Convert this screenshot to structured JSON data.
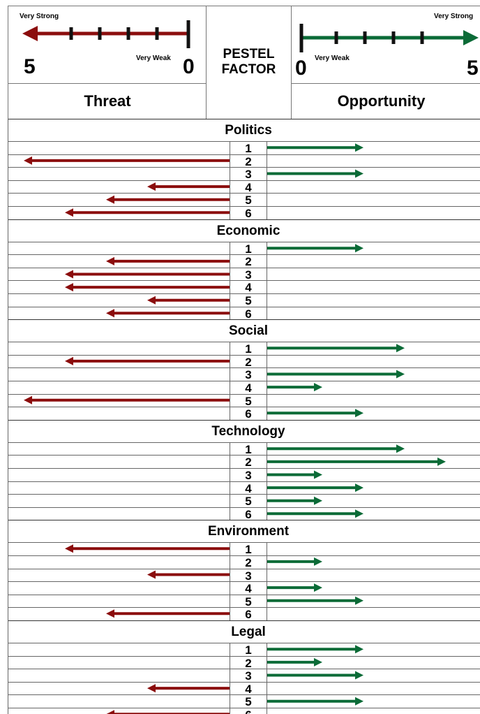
{
  "header": {
    "threat": {
      "strong_label": "Very Strong",
      "weak_label": "Very Weak",
      "max_value": "5",
      "min_value": "0",
      "title": "Threat"
    },
    "factor_title": [
      "PESTEL",
      "FACTOR"
    ],
    "opportunity": {
      "strong_label": "Very Strong",
      "weak_label": "Very Weak",
      "max_value": "5",
      "min_value": "0",
      "title": "Opportunity"
    }
  },
  "colors": {
    "threat": "#8b0d0d",
    "opportunity": "#0b6b37"
  },
  "sections": [
    {
      "name": "Politics",
      "rows": [
        {
          "n": "1",
          "threat": 0,
          "opportunity": 2
        },
        {
          "n": "2",
          "threat": 5,
          "opportunity": 0
        },
        {
          "n": "3",
          "threat": 0,
          "opportunity": 2
        },
        {
          "n": "4",
          "threat": 2,
          "opportunity": 0
        },
        {
          "n": "5",
          "threat": 3,
          "opportunity": 0
        },
        {
          "n": "6",
          "threat": 4,
          "opportunity": 0
        }
      ]
    },
    {
      "name": "Economic",
      "rows": [
        {
          "n": "1",
          "threat": 0,
          "opportunity": 2
        },
        {
          "n": "2",
          "threat": 3,
          "opportunity": 0
        },
        {
          "n": "3",
          "threat": 4,
          "opportunity": 0
        },
        {
          "n": "4",
          "threat": 4,
          "opportunity": 0
        },
        {
          "n": "5",
          "threat": 2,
          "opportunity": 0
        },
        {
          "n": "6",
          "threat": 3,
          "opportunity": 0
        }
      ]
    },
    {
      "name": "Social",
      "rows": [
        {
          "n": "1",
          "threat": 0,
          "opportunity": 3
        },
        {
          "n": "2",
          "threat": 4,
          "opportunity": 0
        },
        {
          "n": "3",
          "threat": 0,
          "opportunity": 3
        },
        {
          "n": "4",
          "threat": 0,
          "opportunity": 1
        },
        {
          "n": "5",
          "threat": 5,
          "opportunity": 0
        },
        {
          "n": "6",
          "threat": 0,
          "opportunity": 2
        }
      ]
    },
    {
      "name": "Technology",
      "rows": [
        {
          "n": "1",
          "threat": 0,
          "opportunity": 3
        },
        {
          "n": "2",
          "threat": 0,
          "opportunity": 4
        },
        {
          "n": "3",
          "threat": 0,
          "opportunity": 1
        },
        {
          "n": "4",
          "threat": 0,
          "opportunity": 2
        },
        {
          "n": "5",
          "threat": 0,
          "opportunity": 1
        },
        {
          "n": "6",
          "threat": 0,
          "opportunity": 2
        }
      ]
    },
    {
      "name": "Environment",
      "rows": [
        {
          "n": "1",
          "threat": 4,
          "opportunity": 0
        },
        {
          "n": "2",
          "threat": 0,
          "opportunity": 1
        },
        {
          "n": "3",
          "threat": 2,
          "opportunity": 0
        },
        {
          "n": "4",
          "threat": 0,
          "opportunity": 1
        },
        {
          "n": "5",
          "threat": 0,
          "opportunity": 2
        },
        {
          "n": "6",
          "threat": 3,
          "opportunity": 0
        }
      ]
    },
    {
      "name": "Legal",
      "rows": [
        {
          "n": "1",
          "threat": 0,
          "opportunity": 2
        },
        {
          "n": "2",
          "threat": 0,
          "opportunity": 1
        },
        {
          "n": "3",
          "threat": 0,
          "opportunity": 2
        },
        {
          "n": "4",
          "threat": 2,
          "opportunity": 0
        },
        {
          "n": "5",
          "threat": 0,
          "opportunity": 2
        },
        {
          "n": "6",
          "threat": 3,
          "opportunity": 0
        }
      ]
    }
  ]
}
